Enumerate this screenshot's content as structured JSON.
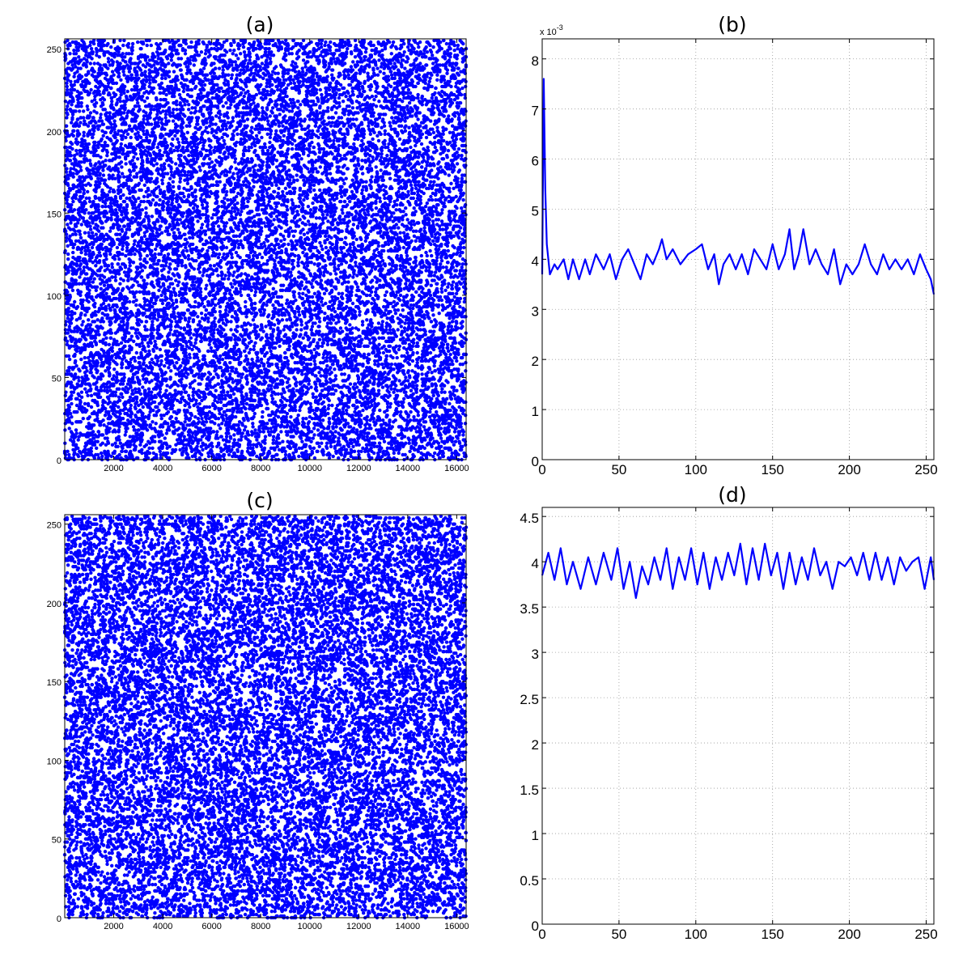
{
  "chart_data": [
    {
      "panel": "a",
      "type": "scatter",
      "title": "(a)",
      "xlim": [
        0,
        16384
      ],
      "ylim": [
        0,
        256
      ],
      "xticks": [
        2000,
        4000,
        6000,
        8000,
        10000,
        12000,
        14000,
        16000
      ],
      "yticks": [
        0,
        50,
        100,
        150,
        200,
        250
      ],
      "grid": false,
      "n_points": 16384,
      "distribution": "uniform random values in [0, 255] at every index",
      "color": "#0000ff"
    },
    {
      "panel": "b",
      "type": "line",
      "title": "(b)",
      "exponent_label": "x 10",
      "exponent_power": "-3",
      "xlim": [
        0,
        255
      ],
      "ylim": [
        0,
        8.4
      ],
      "xticks": [
        0,
        50,
        100,
        150,
        200,
        250
      ],
      "yticks": [
        0,
        1,
        2,
        3,
        4,
        5,
        6,
        7,
        8
      ],
      "grid": true,
      "color": "#0000ff",
      "x": [
        0,
        1,
        2,
        3,
        5,
        8,
        10,
        14,
        17,
        20,
        24,
        28,
        31,
        35,
        40,
        44,
        48,
        52,
        56,
        60,
        64,
        68,
        72,
        76,
        78,
        81,
        85,
        90,
        95,
        100,
        104,
        108,
        112,
        115,
        118,
        122,
        126,
        130,
        134,
        138,
        142,
        146,
        150,
        154,
        158,
        161,
        164,
        167,
        170,
        174,
        178,
        182,
        186,
        190,
        194,
        198,
        202,
        206,
        210,
        214,
        218,
        222,
        226,
        230,
        234,
        238,
        242,
        246,
        250,
        253,
        255
      ],
      "y": [
        3.7,
        7.6,
        5.4,
        4.3,
        3.7,
        3.9,
        3.8,
        4.0,
        3.6,
        4.0,
        3.6,
        4.0,
        3.7,
        4.1,
        3.8,
        4.1,
        3.6,
        4.0,
        4.2,
        3.9,
        3.6,
        4.1,
        3.9,
        4.2,
        4.4,
        4.0,
        4.2,
        3.9,
        4.1,
        4.2,
        4.3,
        3.8,
        4.1,
        3.5,
        3.9,
        4.1,
        3.8,
        4.1,
        3.7,
        4.2,
        4.0,
        3.8,
        4.3,
        3.8,
        4.1,
        4.6,
        3.8,
        4.1,
        4.6,
        3.9,
        4.2,
        3.9,
        3.7,
        4.2,
        3.5,
        3.9,
        3.7,
        3.9,
        4.3,
        3.9,
        3.7,
        4.1,
        3.8,
        4.0,
        3.8,
        4.0,
        3.7,
        4.1,
        3.8,
        3.6,
        3.3
      ]
    },
    {
      "panel": "c",
      "type": "scatter",
      "title": "(c)",
      "xlim": [
        0,
        16384
      ],
      "ylim": [
        0,
        256
      ],
      "xticks": [
        2000,
        4000,
        6000,
        8000,
        10000,
        12000,
        14000,
        16000
      ],
      "yticks": [
        0,
        50,
        100,
        150,
        200,
        250
      ],
      "grid": false,
      "n_points": 16384,
      "distribution": "uniform random values in [0, 255] at every index",
      "color": "#0000ff"
    },
    {
      "panel": "d",
      "type": "line",
      "title": "(d)",
      "xlim": [
        0,
        255
      ],
      "ylim": [
        0,
        4.6
      ],
      "xticks": [
        0,
        50,
        100,
        150,
        200,
        250
      ],
      "yticks": [
        0,
        0.5,
        1,
        1.5,
        2,
        2.5,
        3,
        3.5,
        4,
        4.5
      ],
      "grid": true,
      "color": "#0000ff",
      "x": [
        0,
        4,
        8,
        12,
        16,
        20,
        25,
        30,
        35,
        40,
        45,
        49,
        53,
        57,
        61,
        65,
        69,
        73,
        77,
        81,
        85,
        89,
        93,
        97,
        101,
        105,
        109,
        113,
        117,
        121,
        125,
        129,
        133,
        137,
        141,
        145,
        149,
        153,
        157,
        161,
        165,
        169,
        173,
        177,
        181,
        185,
        189,
        193,
        197,
        201,
        205,
        209,
        213,
        217,
        221,
        225,
        229,
        233,
        237,
        241,
        245,
        249,
        253,
        255
      ],
      "y": [
        3.85,
        4.1,
        3.8,
        4.15,
        3.75,
        4.0,
        3.7,
        4.05,
        3.75,
        4.1,
        3.8,
        4.15,
        3.7,
        4.0,
        3.6,
        3.95,
        3.75,
        4.05,
        3.8,
        4.15,
        3.7,
        4.05,
        3.8,
        4.15,
        3.75,
        4.1,
        3.7,
        4.05,
        3.8,
        4.1,
        3.85,
        4.2,
        3.75,
        4.15,
        3.8,
        4.2,
        3.85,
        4.1,
        3.7,
        4.1,
        3.75,
        4.05,
        3.8,
        4.15,
        3.85,
        4.0,
        3.7,
        4.0,
        3.95,
        4.05,
        3.85,
        4.1,
        3.8,
        4.1,
        3.8,
        4.05,
        3.75,
        4.05,
        3.9,
        4.0,
        4.05,
        3.7,
        4.05,
        3.8
      ]
    }
  ]
}
